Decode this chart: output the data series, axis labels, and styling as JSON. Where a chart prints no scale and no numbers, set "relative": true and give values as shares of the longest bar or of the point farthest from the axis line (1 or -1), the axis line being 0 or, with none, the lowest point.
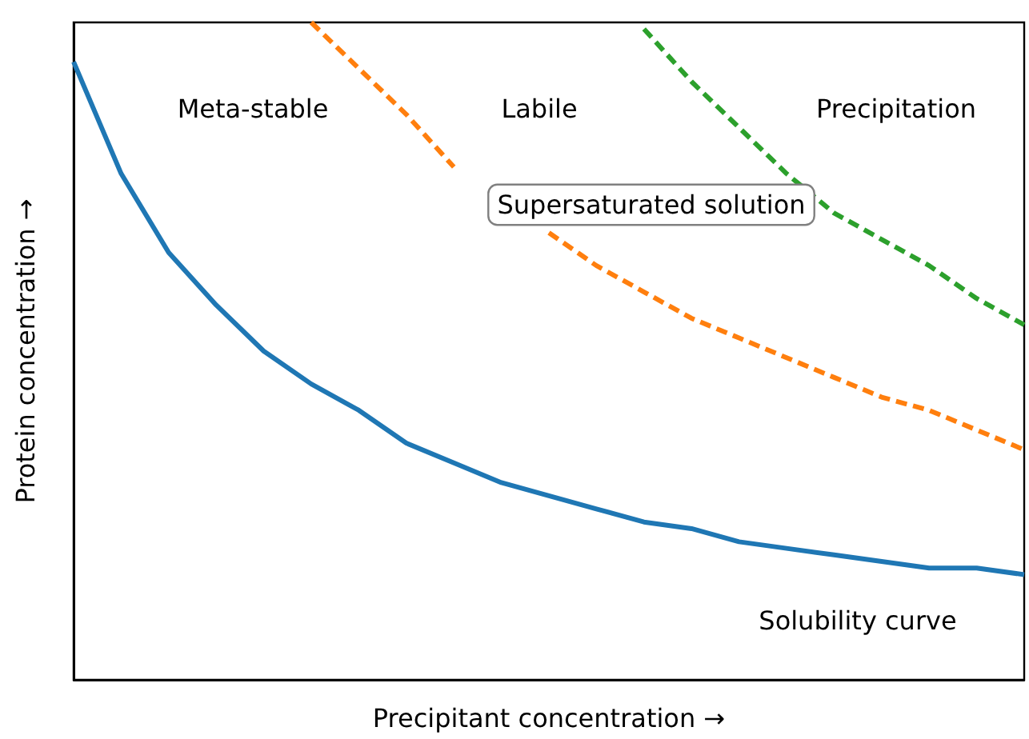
{
  "chart_data": {
    "type": "line",
    "relative": true,
    "xlabel": "Precipitant concentration →",
    "ylabel": "Protein concentration →",
    "categories": [
      null,
      null,
      null,
      null,
      null,
      null,
      null,
      null,
      null,
      null,
      null,
      null,
      null,
      null,
      null,
      null,
      null,
      null,
      null,
      null,
      null
    ],
    "series": [
      {
        "color": "#1f77b4",
        "line_style": "solid",
        "values": [
          0.94,
          0.77,
          0.65,
          0.57,
          0.5,
          0.45,
          0.41,
          0.36,
          0.33,
          0.3,
          0.28,
          0.26,
          0.24,
          0.23,
          0.21,
          0.2,
          0.19,
          0.18,
          0.17,
          0.17,
          0.16
        ]
      },
      {
        "color": "#ff7f0e",
        "line_style": "dashed",
        "values": [
          null,
          null,
          null,
          null,
          null,
          1.0,
          0.93,
          0.86,
          0.78,
          null,
          0.68,
          0.63,
          0.59,
          0.55,
          0.52,
          0.49,
          0.46,
          0.43,
          0.41,
          0.38,
          0.35
        ]
      },
      {
        "color": "#2ca02c",
        "line_style": "dashed",
        "values": [
          null,
          null,
          null,
          null,
          null,
          null,
          null,
          null,
          null,
          null,
          null,
          null,
          0.99,
          0.91,
          0.84,
          0.77,
          0.71,
          0.67,
          0.63,
          0.58,
          0.54
        ]
      }
    ],
    "annotations": [
      "Meta-stable",
      "Labile",
      "Precipitation",
      "Supersaturated solution",
      "Solubility curve"
    ],
    "grid": false,
    "marker": "none"
  }
}
